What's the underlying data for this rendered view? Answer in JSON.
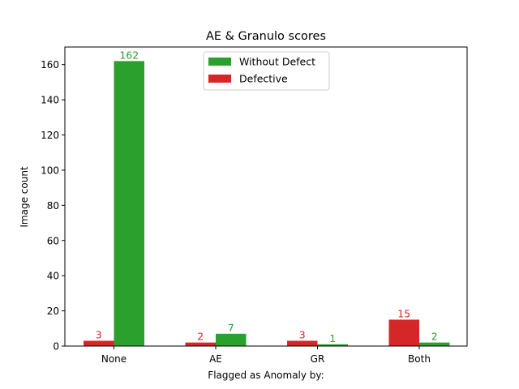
{
  "chart_data": {
    "type": "bar",
    "title": "AE & Granulo scores",
    "xlabel": "Flagged as Anomaly by:",
    "ylabel": "Image count",
    "categories": [
      "None",
      "AE",
      "GR",
      "Both"
    ],
    "series": [
      {
        "name": "Defective",
        "values": [
          3,
          2,
          3,
          15
        ],
        "color": "#d62728"
      },
      {
        "name": "Without Defect",
        "values": [
          162,
          7,
          1,
          2
        ],
        "color": "#2ca02c"
      }
    ],
    "legend_order": [
      "Without Defect",
      "Defective"
    ],
    "ylim": [
      0,
      170
    ],
    "yticks": [
      0,
      20,
      40,
      60,
      80,
      100,
      120,
      140,
      160
    ],
    "legend_position": "top-center",
    "grid": false
  }
}
